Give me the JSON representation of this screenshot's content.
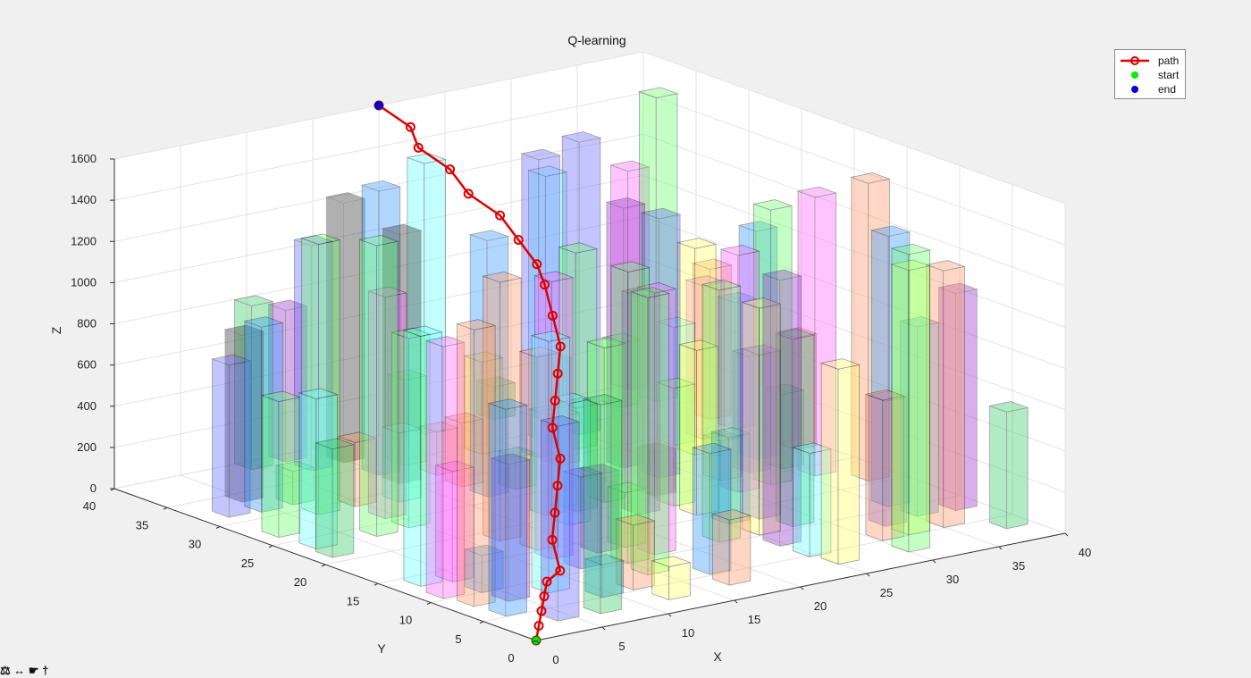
{
  "chart_data": {
    "type": "bar3d",
    "title": "Q-learning",
    "xlabel": "X",
    "ylabel": "Y",
    "zlabel": "Z",
    "xlim": [
      0,
      40
    ],
    "ylim": [
      0,
      40
    ],
    "zlim": [
      0,
      1600
    ],
    "xticks": [
      "0",
      "5",
      "10",
      "15",
      "20",
      "25",
      "30",
      "35",
      "40"
    ],
    "yticks": [
      "0",
      "5",
      "10",
      "15",
      "20",
      "25",
      "30",
      "35",
      "40"
    ],
    "zticks": [
      "0",
      "200",
      "400",
      "600",
      "800",
      "1000",
      "1200",
      "1400",
      "1600"
    ],
    "grid": true,
    "legend_position": "top-right",
    "legend": [
      {
        "label": "path",
        "color": "#e00000",
        "marker": "line-circle"
      },
      {
        "label": "start",
        "color": "#00ee00",
        "marker": "dot"
      },
      {
        "label": "end",
        "color": "#0000dd",
        "marker": "dot"
      }
    ],
    "path": {
      "start": [
        0,
        0,
        0
      ],
      "end": [
        20,
        40,
        1600
      ],
      "points": [
        [
          0,
          0,
          0
        ],
        [
          1,
          1,
          40
        ],
        [
          2,
          2,
          80
        ],
        [
          3,
          3,
          120
        ],
        [
          4,
          4,
          160
        ],
        [
          5,
          4,
          200
        ],
        [
          6,
          6,
          300
        ],
        [
          7,
          7,
          400
        ],
        [
          8,
          8,
          500
        ],
        [
          9,
          9,
          600
        ],
        [
          10,
          11,
          700
        ],
        [
          11,
          12,
          800
        ],
        [
          12,
          13,
          900
        ],
        [
          13,
          14,
          1000
        ],
        [
          14,
          16,
          1100
        ],
        [
          15,
          18,
          1200
        ],
        [
          16,
          20,
          1250
        ],
        [
          17,
          23,
          1300
        ],
        [
          18,
          26,
          1350
        ],
        [
          18,
          29,
          1400
        ],
        [
          19,
          32,
          1450
        ],
        [
          19,
          35,
          1500
        ],
        [
          20,
          37,
          1550
        ],
        [
          20,
          40,
          1600
        ]
      ]
    }
  },
  "footer_text": "⚖ ↔ ☛ †"
}
